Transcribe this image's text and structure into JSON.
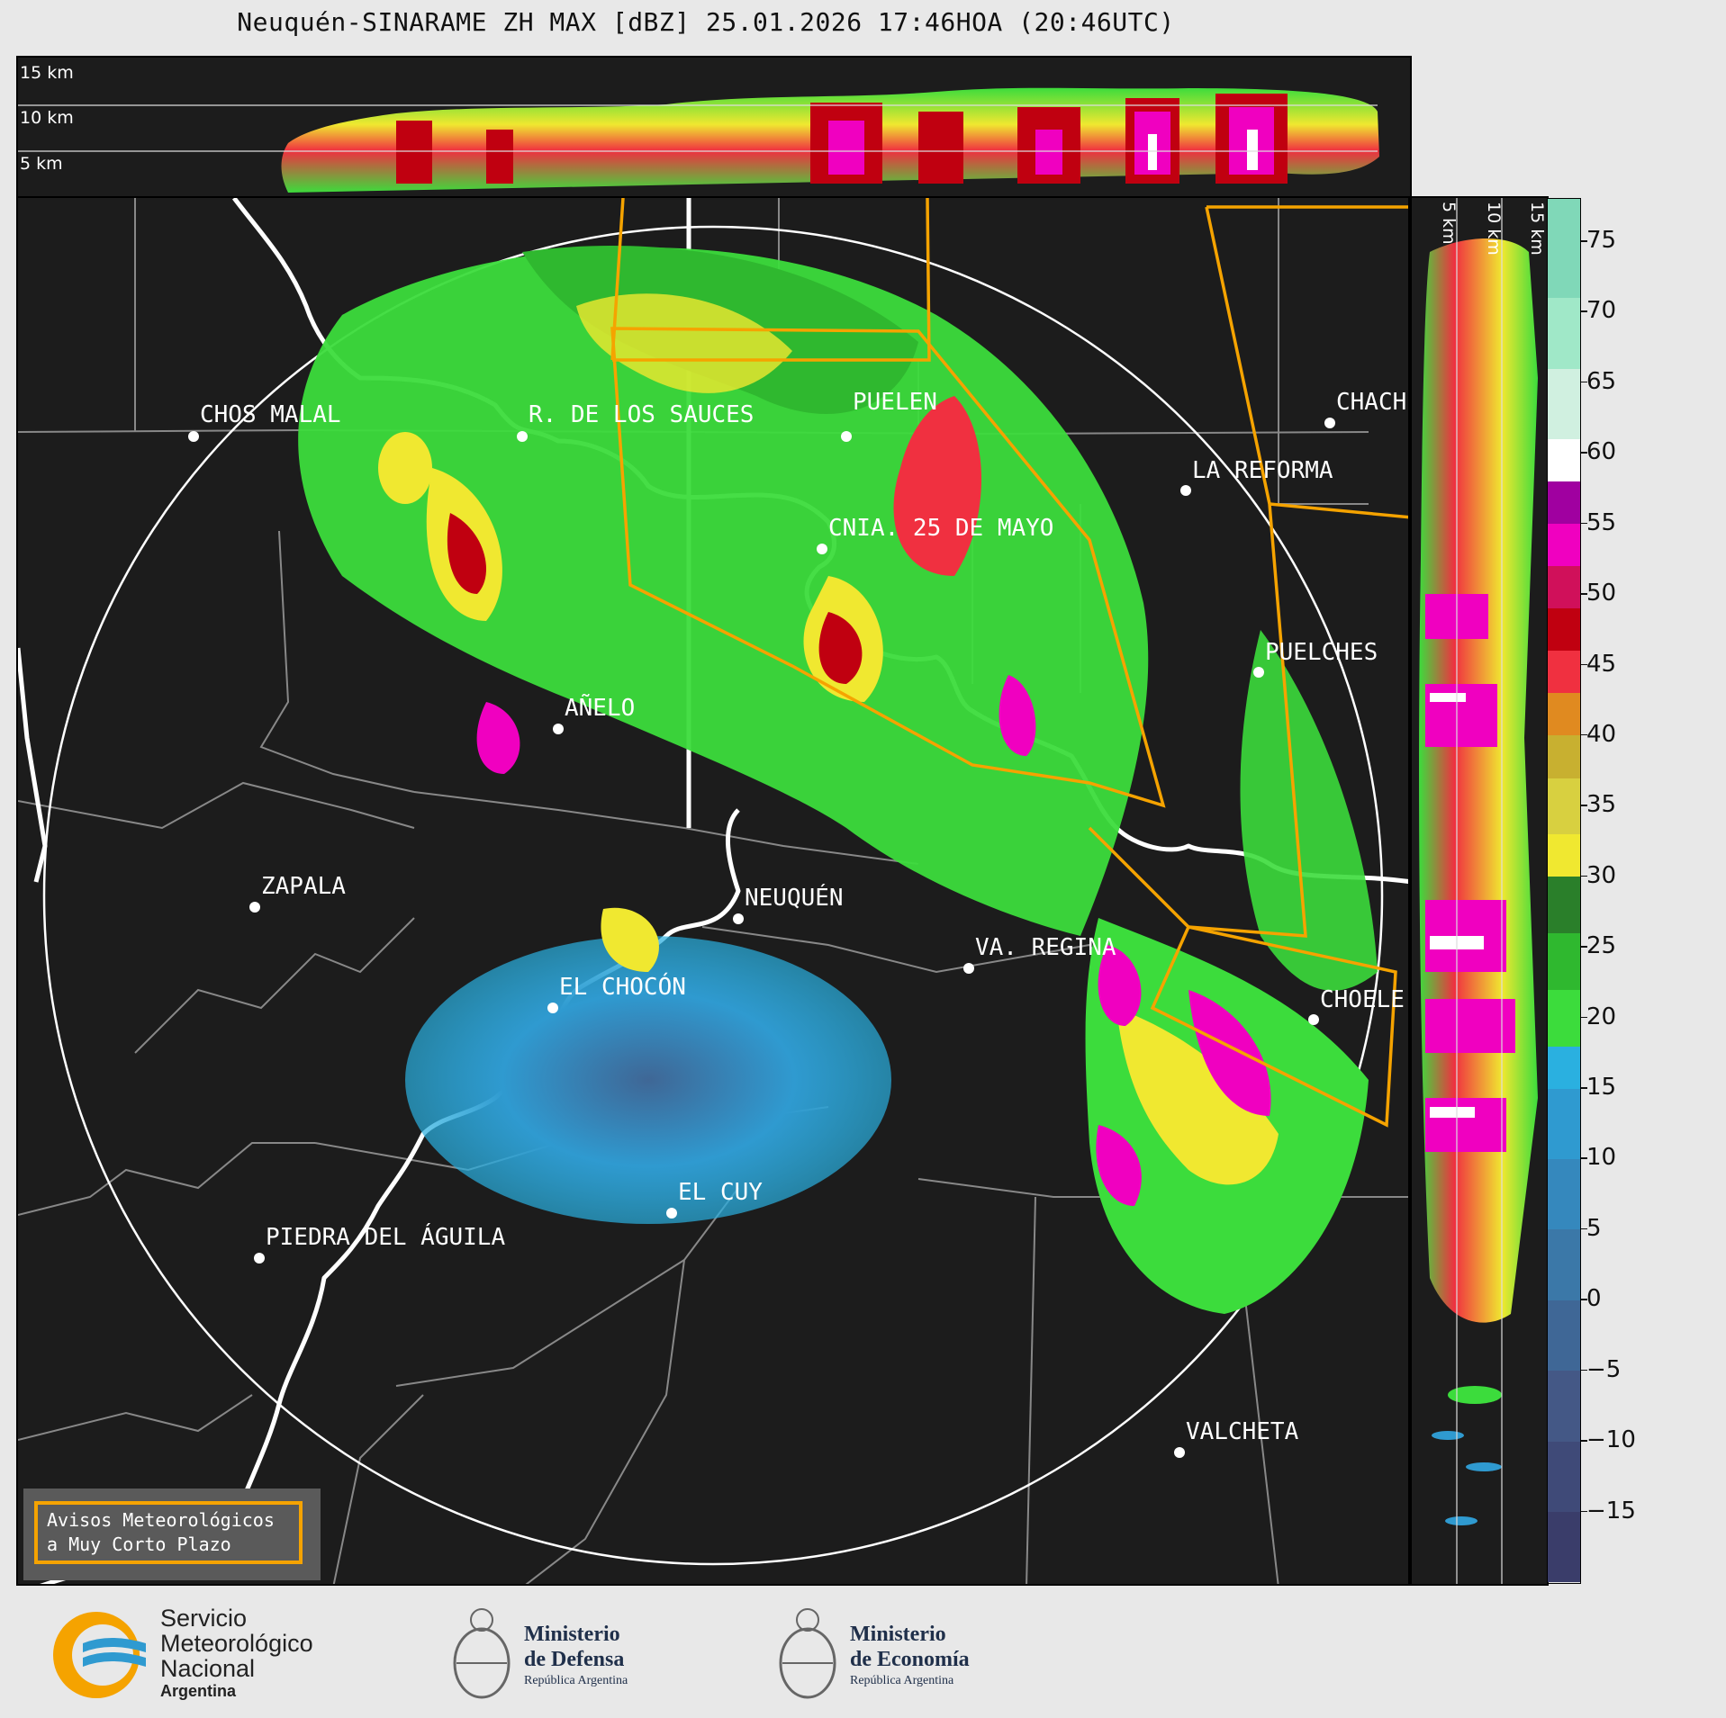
{
  "title": "Neuquén-SINARAME ZH MAX [dBZ] 25.01.2026 17:46HOA (20:46UTC)",
  "top_panel": {
    "height_labels": [
      "15 km",
      "10 km",
      "5 km"
    ]
  },
  "side_panel": {
    "height_labels": [
      "5 km",
      "10 km",
      "15 km"
    ]
  },
  "map": {
    "cities": [
      {
        "name": "CHOS MALAL"
      },
      {
        "name": "R. DE LOS SAUCES"
      },
      {
        "name": "PUELEN"
      },
      {
        "name": "CHACH"
      },
      {
        "name": "LA REFORMA"
      },
      {
        "name": "CNIA. 25 DE MAYO"
      },
      {
        "name": "PUELCHES"
      },
      {
        "name": "AÑELO"
      },
      {
        "name": "ZAPALA"
      },
      {
        "name": "NEUQUÉN"
      },
      {
        "name": "VA. REGINA"
      },
      {
        "name": "EL CHOCÓN"
      },
      {
        "name": "CHOELE"
      },
      {
        "name": "EL CUY"
      },
      {
        "name": "PIEDRA DEL ÁGUILA"
      },
      {
        "name": "VALCHETA"
      }
    ]
  },
  "colorbar": {
    "unit": "dBZ",
    "ticks": [
      "75",
      "70",
      "65",
      "60",
      "55",
      "50",
      "45",
      "40",
      "35",
      "30",
      "25",
      "20",
      "15",
      "10",
      "5",
      "0",
      "−5",
      "−10",
      "−15"
    ],
    "stops": [
      {
        "from": -20,
        "to": -15,
        "color": "#3a3d6a"
      },
      {
        "from": -15,
        "to": -10,
        "color": "#3f4a78"
      },
      {
        "from": -10,
        "to": -5,
        "color": "#445886"
      },
      {
        "from": -5,
        "to": 0,
        "color": "#3f6796"
      },
      {
        "from": 0,
        "to": 5,
        "color": "#3b78a8"
      },
      {
        "from": 5,
        "to": 10,
        "color": "#3588bd"
      },
      {
        "from": 10,
        "to": 15,
        "color": "#2f9ad0"
      },
      {
        "from": 15,
        "to": 18,
        "color": "#2ab0e0"
      },
      {
        "from": 18,
        "to": 22,
        "color": "#3cdc3c"
      },
      {
        "from": 22,
        "to": 26,
        "color": "#2fb82f"
      },
      {
        "from": 26,
        "to": 30,
        "color": "#2a7f2a"
      },
      {
        "from": 30,
        "to": 33,
        "color": "#f0e830"
      },
      {
        "from": 33,
        "to": 37,
        "color": "#d8d040"
      },
      {
        "from": 37,
        "to": 40,
        "color": "#c8b030"
      },
      {
        "from": 40,
        "to": 43,
        "color": "#e08a20"
      },
      {
        "from": 43,
        "to": 46,
        "color": "#f03040"
      },
      {
        "from": 46,
        "to": 49,
        "color": "#c00010"
      },
      {
        "from": 49,
        "to": 52,
        "color": "#d0105a"
      },
      {
        "from": 52,
        "to": 55,
        "color": "#f000c0"
      },
      {
        "from": 55,
        "to": 58,
        "color": "#a000a0"
      },
      {
        "from": 58,
        "to": 61,
        "color": "#ffffff"
      },
      {
        "from": 61,
        "to": 66,
        "color": "#d0f0e0"
      },
      {
        "from": 66,
        "to": 71,
        "color": "#a0e8c8"
      },
      {
        "from": 71,
        "to": 78,
        "color": "#80d8b8"
      }
    ]
  },
  "legend": {
    "line1": "Avisos Meteorológicos",
    "line2": "a Muy Corto Plazo"
  },
  "footer": {
    "smn": {
      "line1": "Servicio",
      "line2": "Meteorológico",
      "line3": "Nacional",
      "line4": "Argentina"
    },
    "defensa": {
      "line1": "Ministerio",
      "line2": "de Defensa",
      "line3": "República Argentina"
    },
    "economia": {
      "line1": "Ministerio",
      "line2": "de Economía",
      "line3": "República Argentina"
    }
  }
}
